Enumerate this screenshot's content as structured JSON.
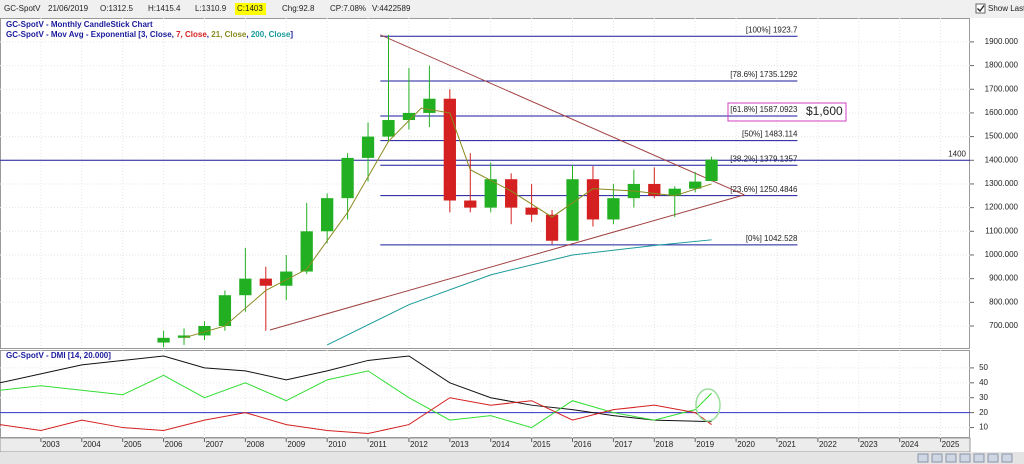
{
  "toolbar": {
    "symbol": "GC-SpotV",
    "date": "21/06/2019",
    "open": "O:1312.5",
    "high": "H:1415.4",
    "low": "L:1310.9",
    "close": "C:1403",
    "change": "Chg:92.8",
    "change_pct": "CP:7.08%",
    "volume": "V:4422589",
    "show_last": "Show Last"
  },
  "chart_data": [
    {
      "type": "candlestick",
      "title": "GC-SpotV - Monthly CandleStick Chart",
      "legend_parts": [
        {
          "text": "GC-SpotV - Mov Avg - Exponential [",
          "color": "#1a1a9c"
        },
        {
          "text": "3, Close",
          "color": "#1a1a9c"
        },
        {
          "text": ", ",
          "color": "#1a1a9c"
        },
        {
          "text": "7, Close",
          "color": "#d42020"
        },
        {
          "text": ", ",
          "color": "#1a1a9c"
        },
        {
          "text": "21, Close",
          "color": "#8a8a20"
        },
        {
          "text": ", ",
          "color": "#1a1a9c"
        },
        {
          "text": "200, Close",
          "color": "#1a9a9a"
        },
        {
          "text": "]",
          "color": "#1a1a9c"
        }
      ],
      "x": [
        2006.0,
        2006.5,
        2007.0,
        2007.5,
        2008.0,
        2008.5,
        2009.0,
        2009.5,
        2010.0,
        2010.5,
        2011.0,
        2011.5,
        2012.0,
        2012.5,
        2013.0,
        2013.5,
        2014.0,
        2014.5,
        2015.0,
        2015.5,
        2016.0,
        2016.5,
        2017.0,
        2017.5,
        2018.0,
        2018.5,
        2019.0,
        2019.4
      ],
      "open": [
        630,
        650,
        660,
        700,
        830,
        900,
        870,
        930,
        1100,
        1240,
        1410,
        1500,
        1570,
        1600,
        1660,
        1230,
        1200,
        1320,
        1200,
        1170,
        1060,
        1320,
        1150,
        1240,
        1300,
        1250,
        1280,
        1312.5
      ],
      "high": [
        680,
        690,
        720,
        850,
        1030,
        950,
        1000,
        1220,
        1260,
        1430,
        1560,
        1930,
        1790,
        1800,
        1700,
        1430,
        1390,
        1345,
        1300,
        1190,
        1380,
        1375,
        1300,
        1360,
        1370,
        1290,
        1350,
        1415.4
      ],
      "low": [
        610,
        620,
        640,
        680,
        760,
        680,
        810,
        920,
        1050,
        1150,
        1310,
        1480,
        1530,
        1540,
        1180,
        1180,
        1180,
        1130,
        1140,
        1045,
        1060,
        1120,
        1130,
        1200,
        1240,
        1160,
        1265,
        1310.9
      ],
      "close": [
        650,
        660,
        700,
        830,
        900,
        870,
        930,
        1100,
        1240,
        1410,
        1500,
        1570,
        1600,
        1660,
        1230,
        1200,
        1320,
        1200,
        1170,
        1060,
        1320,
        1150,
        1240,
        1300,
        1250,
        1280,
        1310,
        1403
      ],
      "up_color": "#22b022",
      "down_color": "#d42020",
      "lines": [
        {
          "color": "#8a8a20",
          "x": [
            2006.5,
            2007.5,
            2008.5,
            2009.5,
            2010.5,
            2011.5,
            2012.3,
            2013.0,
            2013.5,
            2014.5,
            2015.5,
            2016.5,
            2017.5,
            2018.5,
            2019.4
          ],
          "values": [
            650,
            700,
            850,
            940,
            1180,
            1480,
            1620,
            1600,
            1360,
            1270,
            1160,
            1280,
            1270,
            1250,
            1300
          ]
        },
        {
          "color": "#1a9a9a",
          "x": [
            2010.0,
            2012.0,
            2014.0,
            2016.0,
            2018.0,
            2019.4
          ],
          "values": [
            620,
            790,
            916,
            1000,
            1040,
            1064
          ]
        }
      ],
      "trendlines": [
        {
          "color": "#a04040",
          "x": [
            2011.3,
            2020.2
          ],
          "values": [
            1930,
            1254
          ]
        },
        {
          "color": "#a04040",
          "x": [
            2008.6,
            2020.2
          ],
          "values": [
            683,
            1254
          ]
        }
      ],
      "fib_xrange": [
        2011.3,
        2021.5
      ],
      "fib_color": "#1a1a9c",
      "fib_levels": [
        {
          "value": 1923.7,
          "label": "[100%] 1923.7"
        },
        {
          "value": 1735.1292,
          "label": "[78.6%] 1735.1292"
        },
        {
          "value": 1587.0923,
          "label": "[61.8%] 1587.0923"
        },
        {
          "value": 1483.114,
          "label": "[50%] 1483.114"
        },
        {
          "value": 1379.1357,
          "label": "[38.2%] 1379.1357"
        },
        {
          "value": 1250.4846,
          "label": "[23.6%] 1250.4846"
        },
        {
          "value": 1042.528,
          "label": "[0%] 1042.528"
        }
      ],
      "hline": 1400,
      "annotation": "$1,600",
      "xlim": [
        2002.0,
        2025.72
      ],
      "ylim": [
        607,
        2001
      ],
      "yticks": [
        {
          "value": 700,
          "label": "700.000"
        },
        {
          "value": 800,
          "label": "800.000"
        },
        {
          "value": 900,
          "label": "900.000"
        },
        {
          "value": 1000,
          "label": "1000.000"
        },
        {
          "value": 1100,
          "label": "1100.000"
        },
        {
          "value": 1200,
          "label": "1200.000"
        },
        {
          "value": 1300,
          "label": "1300.000"
        },
        {
          "value": 1400,
          "label": "1400.000"
        },
        {
          "value": 1500,
          "label": "1500.000"
        },
        {
          "value": 1600,
          "label": "1600.000"
        },
        {
          "value": 1700,
          "label": "1700.000"
        },
        {
          "value": 1800,
          "label": "1800.000"
        },
        {
          "value": 1900,
          "label": "1900.000"
        }
      ],
      "grid": true
    },
    {
      "type": "line",
      "title": "GC-SpotV - DMI [14, 20.000]",
      "series": [
        {
          "color": "#111111",
          "x": [
            2002.0,
            2004.0,
            2006.0,
            2007.0,
            2008.0,
            2009.0,
            2010.0,
            2011.0,
            2012.0,
            2013.0,
            2014.0,
            2015.0,
            2016.0,
            2017.0,
            2018.0,
            2019.4
          ],
          "values": [
            40,
            52,
            58,
            50,
            48,
            42,
            48,
            55,
            58,
            40,
            30,
            25,
            22,
            18,
            15,
            14
          ]
        },
        {
          "color": "#33dd33",
          "x": [
            2002.0,
            2003.0,
            2004.0,
            2005.0,
            2006.0,
            2007.0,
            2008.0,
            2009.0,
            2010.0,
            2011.0,
            2012.0,
            2013.0,
            2014.0,
            2015.0,
            2016.0,
            2017.0,
            2018.0,
            2019.0,
            2019.4
          ],
          "values": [
            35,
            38,
            35,
            32,
            45,
            30,
            40,
            28,
            42,
            48,
            30,
            15,
            18,
            10,
            28,
            20,
            15,
            22,
            33
          ]
        },
        {
          "color": "#d42020",
          "x": [
            2002.0,
            2003.0,
            2004.0,
            2005.0,
            2006.0,
            2007.0,
            2008.0,
            2009.0,
            2010.0,
            2011.0,
            2012.0,
            2013.0,
            2014.0,
            2015.0,
            2016.0,
            2017.0,
            2018.0,
            2019.0,
            2019.4
          ],
          "values": [
            12,
            8,
            15,
            10,
            8,
            15,
            20,
            12,
            8,
            6,
            12,
            30,
            25,
            28,
            15,
            22,
            25,
            20,
            12
          ]
        }
      ],
      "hline": 20,
      "hline_color": "#3333cc",
      "xlim": [
        2002.0,
        2025.72
      ],
      "xticks": [
        2003,
        2004,
        2005,
        2006,
        2007,
        2008,
        2009,
        2010,
        2011,
        2012,
        2013,
        2014,
        2015,
        2016,
        2017,
        2018,
        2019,
        2020,
        2021,
        2022,
        2023,
        2024,
        2025
      ],
      "ylim": [
        3,
        62
      ],
      "yticks": [
        10,
        20,
        30,
        40,
        50
      ],
      "grid": true
    }
  ]
}
